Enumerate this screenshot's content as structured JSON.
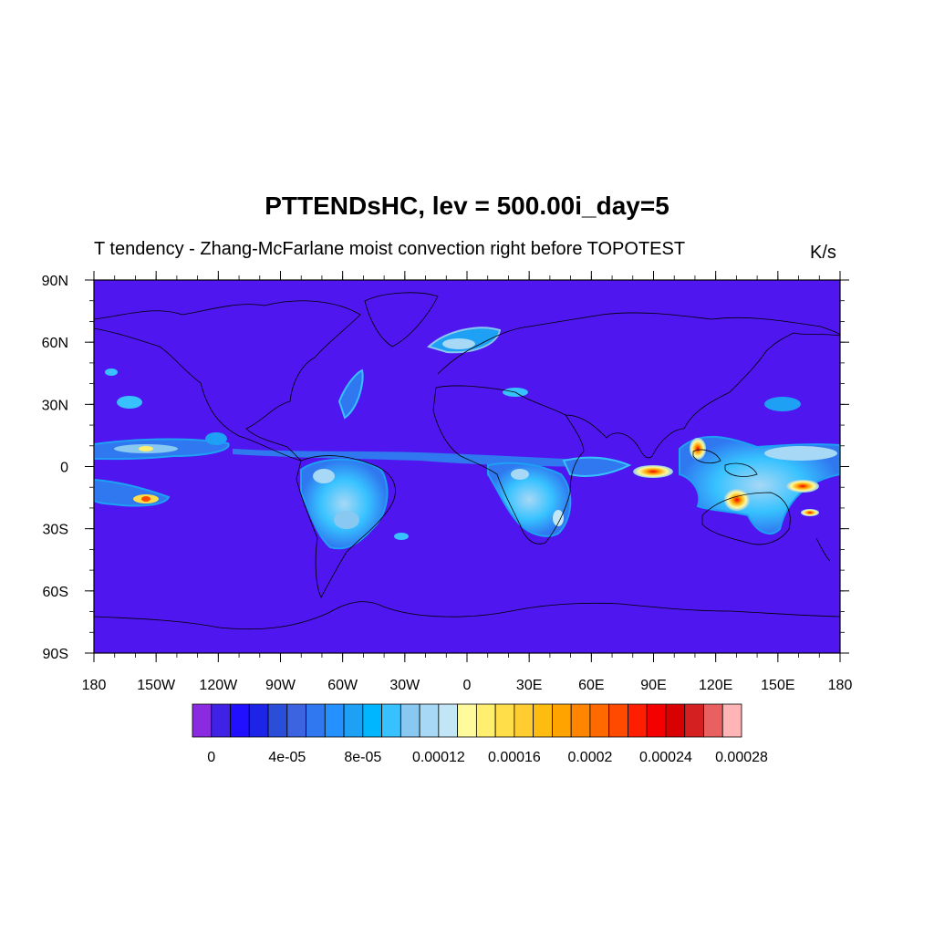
{
  "map": {
    "title": "PTTENDsHC, lev = 500.00i_day=5",
    "subtitle": "T tendency - Zhang-McFarlane moist convection right before TOPOTEST",
    "units": "K/s",
    "lat_labels": [
      "90N",
      "60N",
      "30N",
      "0",
      "30S",
      "60S",
      "90S"
    ],
    "lon_labels": [
      "180",
      "150W",
      "120W",
      "90W",
      "60W",
      "30W",
      "0",
      "30E",
      "60E",
      "90E",
      "120E",
      "150E",
      "180"
    ],
    "background_color": "#4f16ef"
  },
  "colorbar": {
    "tick_labels": [
      "0",
      "4e-05",
      "8e-05",
      "0.00012",
      "0.00016",
      "0.0002",
      "0.00024",
      "0.00028"
    ],
    "colors": [
      "#8a2be2",
      "#3f22e6",
      "#2010ff",
      "#1c24e8",
      "#2a4ed8",
      "#3c63e0",
      "#2f78f0",
      "#2590ff",
      "#1ea0f5",
      "#00b7ff",
      "#37c2ff",
      "#89c8f0",
      "#a7d8f5",
      "#c2e6f6",
      "#fffa9c",
      "#ffef6e",
      "#ffde4a",
      "#ffcd2f",
      "#ffbc10",
      "#ffa300",
      "#ff8500",
      "#ff6a00",
      "#ff4a00",
      "#ff1e00",
      "#f50000",
      "#d80000",
      "#d42020",
      "#e86060",
      "#ffb5b5"
    ]
  }
}
